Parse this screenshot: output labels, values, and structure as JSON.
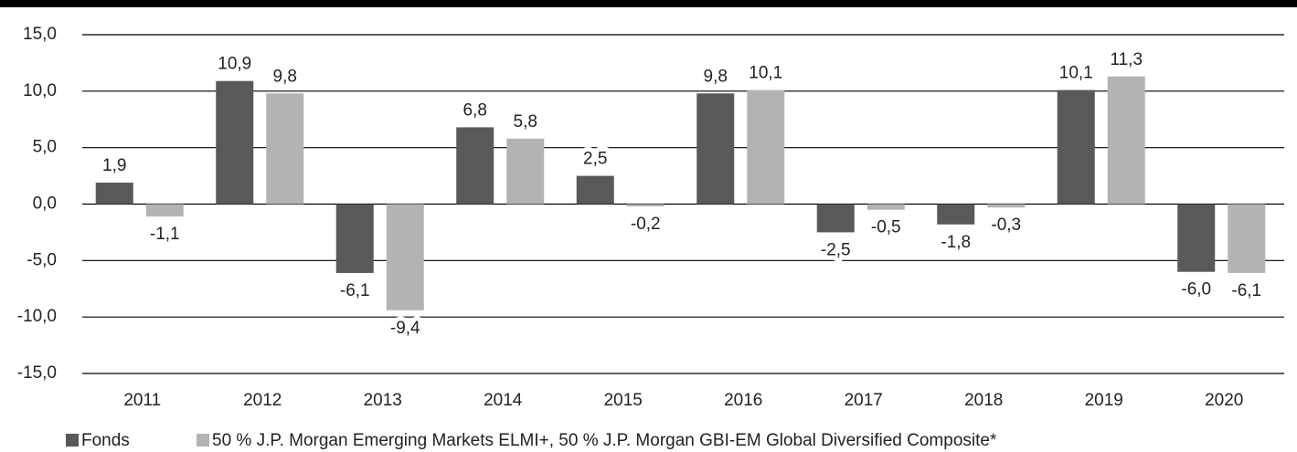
{
  "chart_data": {
    "type": "bar",
    "categories": [
      "2011",
      "2012",
      "2013",
      "2014",
      "2015",
      "2016",
      "2017",
      "2018",
      "2019",
      "2020"
    ],
    "series": [
      {
        "name": "Fonds",
        "color": "#595959",
        "values": [
          1.9,
          10.9,
          -6.1,
          6.8,
          2.5,
          9.8,
          -2.5,
          -1.8,
          10.1,
          -6.0
        ],
        "value_labels": [
          "1,9",
          "10,9",
          "-6,1",
          "6,8",
          "2,5",
          "9,8",
          "-2,5",
          "-1,8",
          "10,1",
          "-6,0"
        ]
      },
      {
        "name": "50 % J.P. Morgan Emerging Markets ELMI+, 50 % J.P. Morgan GBI-EM Global Diversified Composite*",
        "color": "#b3b3b3",
        "values": [
          -1.1,
          9.8,
          -9.4,
          5.8,
          -0.2,
          10.1,
          -0.5,
          -0.3,
          11.3,
          -6.1
        ],
        "value_labels": [
          "-1,1",
          "9,8",
          "-9,4",
          "5,8",
          "-0,2",
          "10,1",
          "-0,5",
          "-0,3",
          "11,3",
          "-6,1"
        ]
      }
    ],
    "ylim": [
      -15,
      15
    ],
    "yticks": [
      {
        "value": -15,
        "label": "-15,0"
      },
      {
        "value": -10,
        "label": "-10,0"
      },
      {
        "value": -5,
        "label": "-5,0"
      },
      {
        "value": 0,
        "label": "0,0"
      },
      {
        "value": 5,
        "label": "5,0"
      },
      {
        "value": 10,
        "label": "10,0"
      },
      {
        "value": 15,
        "label": "15,0"
      }
    ],
    "grid": true
  }
}
